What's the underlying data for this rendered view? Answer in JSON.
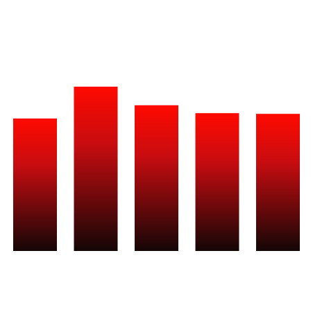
{
  "chart_data": {
    "type": "bar",
    "categories": [
      "",
      "",
      "",
      "",
      ""
    ],
    "values": [
      100,
      124,
      110,
      104,
      103.5
    ],
    "ylim": [
      0,
      124
    ],
    "grid": false,
    "legend": "none",
    "colors": {
      "bar_top": "#ff0a00",
      "bar_mid": "#c80c10",
      "bar_bottom": "#140606"
    }
  }
}
